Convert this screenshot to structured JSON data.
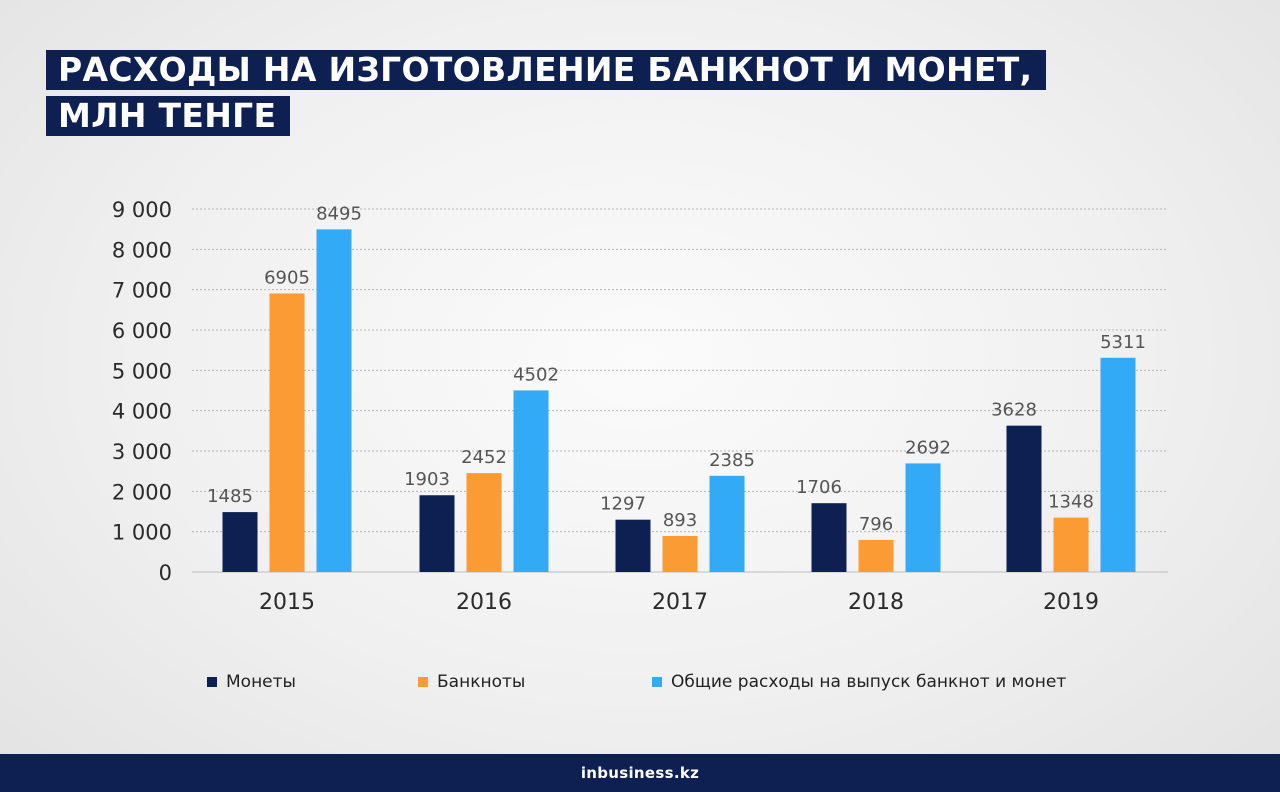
{
  "title": {
    "line1": "РАСХОДЫ НА ИЗГОТОВЛЕНИЕ БАНКНОТ И МОНЕТ,",
    "line2": "МЛН ТЕНГЕ"
  },
  "colors": {
    "coins": "#0e1f52",
    "banknotes": "#fb9b33",
    "total": "#33aaf5",
    "title_bg": "#0e1f52",
    "footer_bg": "#0e1f52"
  },
  "chart_data": {
    "type": "bar",
    "title": "РАСХОДЫ НА ИЗГОТОВЛЕНИЕ БАНКНОТ И МОНЕТ, МЛН ТЕНГЕ",
    "categories": [
      "2015",
      "2016",
      "2017",
      "2018",
      "2019"
    ],
    "series": [
      {
        "name": "Монеты",
        "color": "#0e1f52",
        "values": [
          1485,
          1903,
          1297,
          1706,
          3628
        ]
      },
      {
        "name": "Банкноты",
        "color": "#fb9b33",
        "values": [
          6905,
          2452,
          893,
          796,
          1348
        ]
      },
      {
        "name": "Общие расходы на выпуск банкнот и монет",
        "color": "#33aaf5",
        "values": [
          8495,
          4502,
          2385,
          2692,
          5311
        ]
      }
    ],
    "ylim": [
      0,
      9000
    ],
    "yticks": [
      "0",
      "1 000",
      "2 000",
      "3 000",
      "4 000",
      "5 000",
      "6 000",
      "7 000",
      "8 000",
      "9 000"
    ],
    "grid": true,
    "legend_position": "bottom"
  },
  "legend": [
    {
      "label": "Монеты",
      "color": "#0e1f52"
    },
    {
      "label": "Банкноты",
      "color": "#fb9b33"
    },
    {
      "label": "Общие расходы на выпуск банкнот и монет",
      "color": "#33aaf5"
    }
  ],
  "footer": {
    "brand_prefix": "in",
    "brand_rest": "business.kz"
  }
}
